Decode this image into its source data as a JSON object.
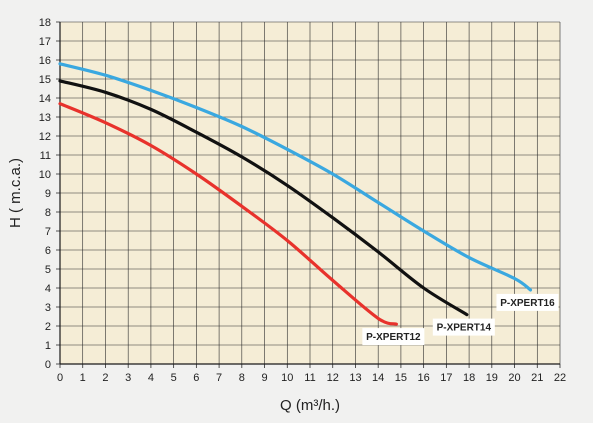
{
  "chart_data": {
    "type": "line",
    "xlabel": "Q (m³/h.)",
    "ylabel": "H ( m.c.a.)",
    "xlim": [
      0,
      22
    ],
    "ylim": [
      0,
      18
    ],
    "x_ticks": [
      0,
      1,
      2,
      3,
      4,
      5,
      6,
      7,
      8,
      9,
      10,
      11,
      12,
      13,
      14,
      15,
      16,
      17,
      18,
      19,
      20,
      21,
      22
    ],
    "y_ticks": [
      0,
      1,
      2,
      3,
      4,
      5,
      6,
      7,
      8,
      9,
      10,
      11,
      12,
      13,
      14,
      15,
      16,
      17,
      18
    ],
    "grid": true,
    "plot_background": "#f5edd6",
    "series": [
      {
        "name": "P-XPERT16",
        "color": "#3aa8e0",
        "x": [
          0,
          2,
          4,
          6,
          8,
          10,
          12,
          14,
          16,
          18,
          20,
          20.7
        ],
        "y": [
          15.8,
          15.2,
          14.4,
          13.5,
          12.5,
          11.3,
          10.0,
          8.5,
          7.0,
          5.6,
          4.5,
          3.9
        ]
      },
      {
        "name": "P-XPERT14",
        "color": "#111111",
        "x": [
          0,
          2,
          4,
          6,
          8,
          10,
          12,
          14,
          16,
          17.9
        ],
        "y": [
          14.9,
          14.3,
          13.4,
          12.2,
          10.9,
          9.4,
          7.7,
          5.9,
          4.0,
          2.6
        ]
      },
      {
        "name": "P-XPERT12",
        "color": "#e8322c",
        "x": [
          0,
          2,
          4,
          6,
          8,
          10,
          12,
          14,
          14.8
        ],
        "y": [
          13.7,
          12.7,
          11.5,
          10.0,
          8.3,
          6.5,
          4.4,
          2.4,
          2.1
        ]
      }
    ]
  }
}
